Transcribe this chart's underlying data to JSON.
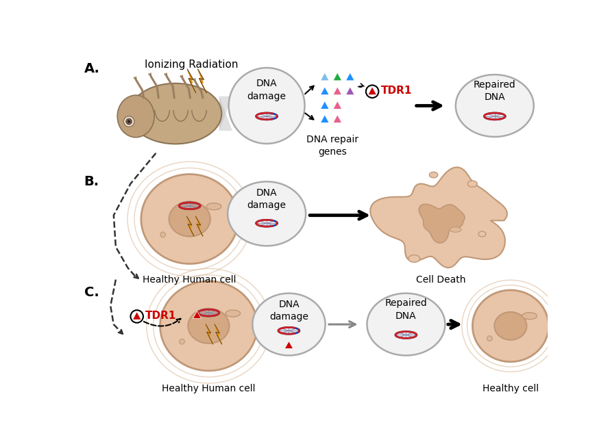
{
  "bg_color": "#ffffff",
  "label_A": "A.",
  "label_B": "B.",
  "label_C": "C.",
  "title_ionizing": "Ionizing Radiation",
  "label_dna_damage": "DNA\ndamage",
  "label_dna_repair": "DNA repair\ngenes",
  "label_TDR1": "TDR1",
  "label_repaired_dna_A": "Repaired\nDNA",
  "label_healthy_human": "Healthy Human cell",
  "label_cell_death": "Cell Death",
  "label_healthy_human_C": "Healthy Human cell",
  "label_healthy_cell": "Healthy cell",
  "label_repaired_dna_C": "Repaired\nDNA",
  "label_tdr1_C": "TDR1",
  "lightning_color": "#E8900A",
  "cell_fill": "#E8C5A8",
  "nucleus_fill": "#D4A882",
  "circle_fill": "#F2F2F2",
  "circle_edge": "#AAAAAA",
  "dna_blue": "#1144BB",
  "dna_red": "#CC2222",
  "triangle_colors": [
    "#7BBFEA",
    "#1E90FF",
    "#22AA44",
    "#AADDFF",
    "#E8608A",
    "#9B59B6",
    "#1E90FF",
    "#E8608A",
    "#AADDFF",
    "#E8608A"
  ],
  "tdr1_color": "#CC0000",
  "arrow_color": "#111111",
  "dashed_line_color": "#333333"
}
